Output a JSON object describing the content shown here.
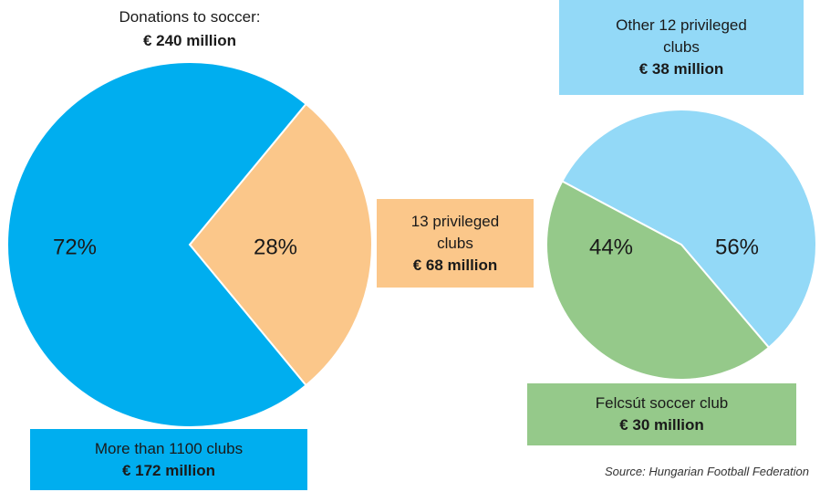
{
  "chart_data": [
    {
      "type": "pie",
      "title": "Donations to soccer:",
      "subtitle": "€ 240 million",
      "categories": [
        "More than 1100 clubs",
        "13 privileged clubs"
      ],
      "values": [
        72,
        28
      ],
      "value_labels": [
        "72%",
        "28%"
      ],
      "amount_labels": [
        "€ 172 million",
        "€ 68 million"
      ],
      "colors": [
        "#00aeef",
        "#fbc78a"
      ]
    },
    {
      "type": "pie",
      "categories": [
        "Other 12 privileged clubs",
        "Felcsút soccer club"
      ],
      "values": [
        56,
        44
      ],
      "value_labels": [
        "56%",
        "44%"
      ],
      "amount_labels": [
        "€ 38 million",
        "€ 30 million"
      ],
      "colors": [
        "#93d9f7",
        "#95c98a"
      ]
    }
  ],
  "source": "Source: Hungarian Football Federation"
}
